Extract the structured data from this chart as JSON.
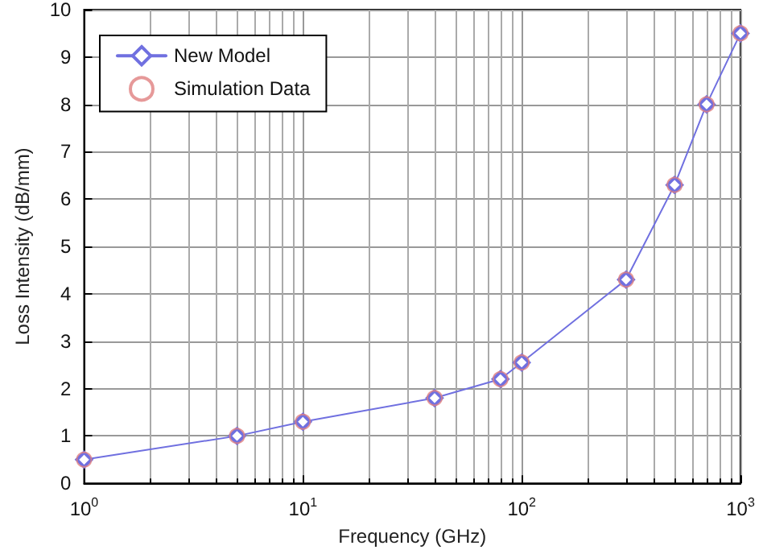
{
  "chart_data": {
    "type": "line",
    "xlabel": "Frequency (GHz)",
    "ylabel": "Loss Intensity (dB/mm)",
    "x": [
      1,
      5,
      10,
      40,
      80,
      100,
      300,
      500,
      700,
      1000
    ],
    "series": [
      {
        "name": "New Model",
        "color": "#7070e0",
        "marker": "diamond",
        "values": [
          0.5,
          1.0,
          1.3,
          1.8,
          2.2,
          2.55,
          4.3,
          6.3,
          8.0,
          9.5
        ]
      },
      {
        "name": "Simulation Data",
        "type": "scatter",
        "color": "#e08080",
        "marker": "circle",
        "values": [
          0.5,
          1.0,
          1.3,
          1.8,
          2.2,
          2.55,
          4.3,
          6.3,
          8.0,
          9.5
        ]
      }
    ],
    "log": "x",
    "xlim": [
      1,
      1000
    ],
    "xticks": [
      {
        "value": 1,
        "label": "10$^{0}$"
      },
      {
        "value": 10,
        "label": "10$^{1}$"
      },
      {
        "value": 100,
        "label": "10$^{2}$"
      },
      {
        "value": 1000,
        "label": "10$^{3}$"
      }
    ],
    "ylim": [
      0,
      10
    ],
    "yticks": [
      0,
      1,
      2,
      3,
      4,
      5,
      6,
      7,
      8,
      9,
      10
    ],
    "grid": true,
    "legend": "top left"
  }
}
